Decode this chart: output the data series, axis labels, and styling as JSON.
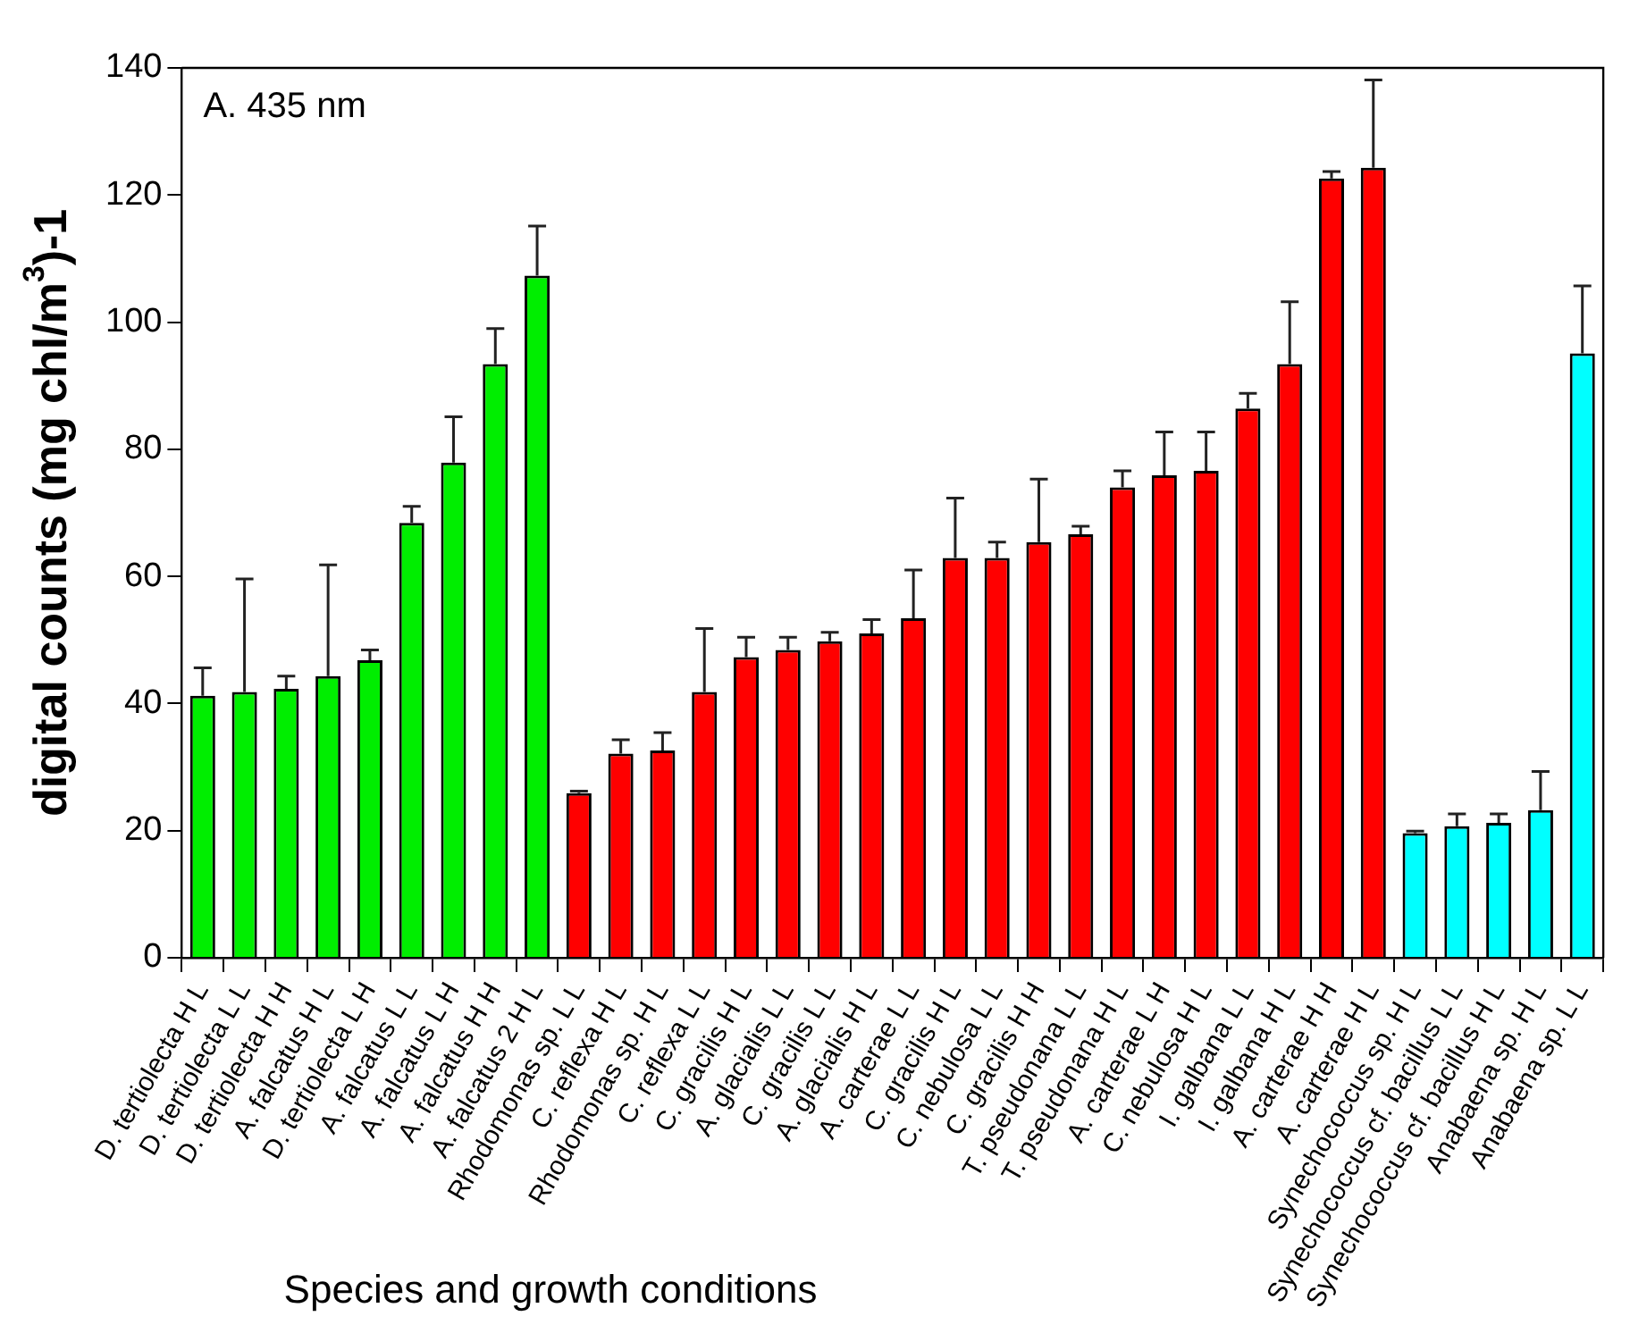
{
  "chart_data": {
    "type": "bar",
    "xlabel": "Species and growth conditions",
    "ylabel": "digital counts (mg chl/m$^{3}$)-1",
    "annotations": [
      "A. 435 nm"
    ],
    "categories": [
      "D. tertiolecta H L",
      "D. tertiolecta L L",
      "D. tertiolecta H H",
      "A. falcatus H L",
      "D. tertiolecta L H",
      "A. falcatus L L",
      "A. falcatus L H",
      "A. falcatus H H",
      "A. falcatus 2 H L",
      "Rhodomonas sp. L L",
      "C. reflexa H L",
      "Rhodomonas sp. H L",
      "C. reflexa L L",
      "C. gracilis H L",
      "A. glacialis L L",
      "C. gracilis L L",
      "A. glacialis H L",
      "A. carterae L L",
      "C. gracilis H L",
      "C. nebulosa L L",
      "C. gracilis H H",
      "T. pseudonana L L",
      "T. pseudonana H L",
      "A. carterae L H",
      "C. nebulosa H L",
      "I. galbana L L",
      "I. galbana H L",
      "A. carterae H H",
      "A. carterae H L",
      "Synechococcus sp. H L",
      "Synechococcus cf. bacillus L L",
      "Synechococcus cf. bacillus H L",
      "Anabaena sp. H L",
      "Anabaena sp. L L"
    ],
    "values": [
      41.2,
      41.8,
      42.3,
      44.3,
      46.8,
      68.4,
      77.9,
      93.4,
      107.3,
      25.9,
      32.1,
      32.6,
      41.8,
      47.3,
      48.4,
      49.8,
      51,
      53.4,
      62.9,
      62.9,
      65.4,
      66.6,
      74,
      75.9,
      76.6,
      86.4,
      93.4,
      122.6,
      124.3,
      19.6,
      20.7,
      21.2,
      23.2,
      95.1
    ],
    "errors": [
      [
        41.2,
        45.6
      ],
      [
        41.8,
        59.6
      ],
      [
        42.3,
        44.3
      ],
      [
        44.3,
        61.8
      ],
      [
        46.8,
        48.4
      ],
      [
        68.4,
        71
      ],
      [
        77.9,
        85.1
      ],
      [
        93.4,
        99
      ],
      [
        107.3,
        115.1
      ],
      [
        25.9,
        26.2
      ],
      [
        32.1,
        34.3
      ],
      [
        32.6,
        35.4
      ],
      [
        41.8,
        51.8
      ],
      [
        47.3,
        50.4
      ],
      [
        48.4,
        50.4
      ],
      [
        49.8,
        51.2
      ],
      [
        51,
        53.2
      ],
      [
        53.4,
        61
      ],
      [
        62.9,
        72.3
      ],
      [
        62.9,
        65.4
      ],
      [
        65.4,
        75.3
      ],
      [
        66.6,
        67.9
      ],
      [
        74,
        76.6
      ],
      [
        75.9,
        82.7
      ],
      [
        76.6,
        82.7
      ],
      [
        86.4,
        88.8
      ],
      [
        93.4,
        103.2
      ],
      [
        122.6,
        123.7
      ],
      [
        124.3,
        138.1
      ],
      [
        19.6,
        19.9
      ],
      [
        20.7,
        22.6
      ],
      [
        21.2,
        22.6
      ],
      [
        23.2,
        29.3
      ],
      [
        95.1,
        105.7
      ]
    ],
    "colors": [
      "#00ee00",
      "#00ee00",
      "#00ee00",
      "#00ee00",
      "#00ee00",
      "#00ee00",
      "#00ee00",
      "#00ee00",
      "#00ee00",
      "#ff0000",
      "#ff0000",
      "#ff0000",
      "#ff0000",
      "#ff0000",
      "#ff0000",
      "#ff0000",
      "#ff0000",
      "#ff0000",
      "#ff0000",
      "#ff0000",
      "#ff0000",
      "#ff0000",
      "#ff0000",
      "#ff0000",
      "#ff0000",
      "#ff0000",
      "#ff0000",
      "#ff0000",
      "#ff0000",
      "#00ffff",
      "#00ffff",
      "#00ffff",
      "#00ffff",
      "#00ffff"
    ],
    "ylim": [
      0,
      140
    ],
    "yticks": [
      0,
      20,
      40,
      60,
      80,
      100,
      120,
      140
    ],
    "grid": false,
    "legend": false
  }
}
